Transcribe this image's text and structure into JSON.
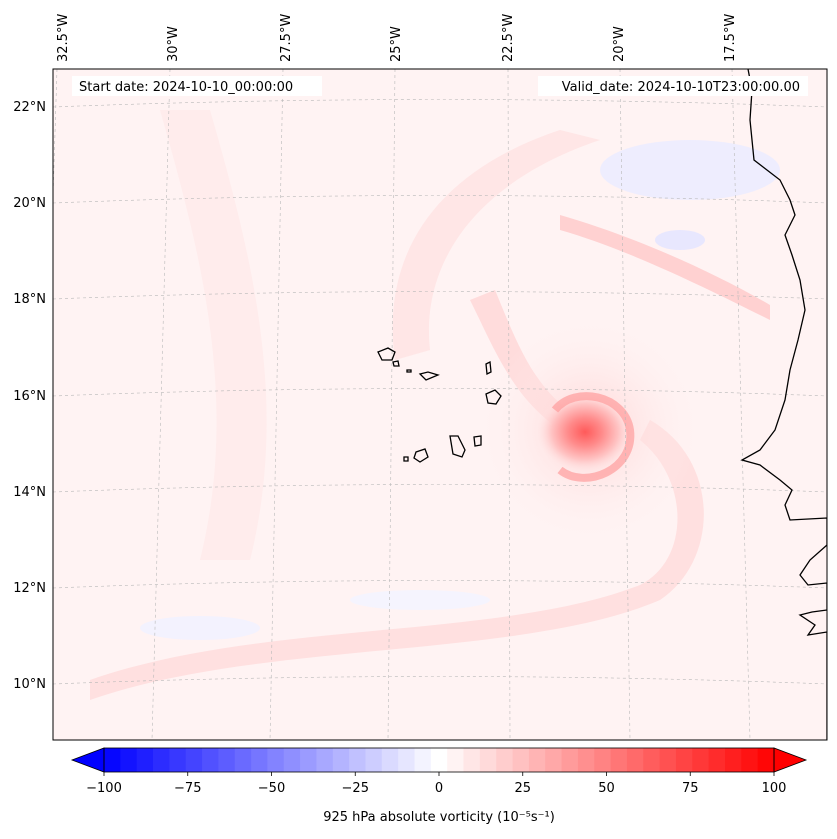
{
  "header": {
    "start_date": "Start date: 2024-10-10_00:00:00",
    "valid_date": "Valid_date: 2024-10-10T23:00:00.00"
  },
  "axes": {
    "longitude_labels": [
      "32.5°W",
      "30°W",
      "27.5°W",
      "25°W",
      "22.5°W",
      "20°W",
      "17.5°W"
    ],
    "latitude_labels": [
      "22°N",
      "20°N",
      "18°N",
      "16°N",
      "14°N",
      "12°N",
      "10°N"
    ]
  },
  "colorbar": {
    "tick_labels": [
      "−100",
      "−75",
      "−50",
      "−25",
      "0",
      "25",
      "50",
      "75",
      "100"
    ],
    "label": "925 hPa absolute vorticity (10⁻⁵s⁻¹)",
    "min": -100,
    "max": 100,
    "levels": 41,
    "cmap": "bwr"
  },
  "colors": {
    "coastline": "#000000",
    "gridline": "#b8b8b8",
    "negative_extreme": "#0000ff",
    "positive_extreme": "#ff0000",
    "neutral": "#ffffff"
  }
}
